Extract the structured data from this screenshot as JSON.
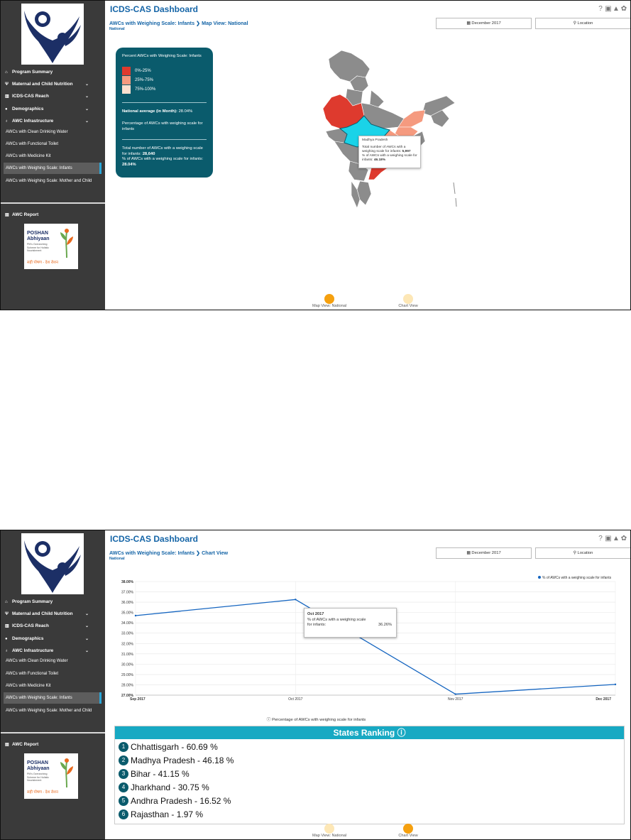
{
  "app": {
    "title": "ICDS-CAS Dashboard",
    "top_icons": [
      "help-icon",
      "print-icon",
      "warning-icon",
      "settings-icon"
    ]
  },
  "sidebar": {
    "items": [
      {
        "label": "Program Summary",
        "icon": "home-icon",
        "has_chevron": false
      },
      {
        "label": "Maternal and Child Nutrition",
        "icon": "fork-icon",
        "has_chevron": true
      },
      {
        "label": "ICDS-CAS Reach",
        "icon": "bar-chart-icon",
        "has_chevron": true
      },
      {
        "label": "Demographics",
        "icon": "users-icon",
        "has_chevron": true
      },
      {
        "label": "AWC Infrastructure",
        "icon": "bulb-icon",
        "has_chevron": true
      }
    ],
    "sub_items": [
      "AWCs with Clean Drinking Water",
      "AWCs with Functional Toilet",
      "AWCs with Medicine Kit",
      "AWCs with Weighing Scale: Infants",
      "AWCs with Weighing Scale: Mother and Child"
    ],
    "report": {
      "label": "AWC Report",
      "icon": "report-icon"
    },
    "poshan": {
      "line1": "POSHAN",
      "line2": "Abhiyaan",
      "tagline": "PM's Overarching Scheme for Holistic Nourishment",
      "hindi": "सही पोषण - देश रोशन"
    }
  },
  "filters": {
    "month": "December 2017",
    "location": "Location"
  },
  "map_view": {
    "breadcrumb_a": "AWCs with Weighing Scale: Infants",
    "breadcrumb_sep": "❯",
    "breadcrumb_b": "Map View: National",
    "subtitle": "National",
    "legend": {
      "title": "Percent AWCs with Weighing Scale: Infants",
      "ranges": [
        {
          "label": "0%-25%",
          "color": "#de3a2e"
        },
        {
          "label": "25%-75%",
          "color": "#f59a7f"
        },
        {
          "label": "75%-100%",
          "color": "#fce0cf"
        }
      ],
      "national_avg_label": "National average (in Month):",
      "national_avg_value": "28.04%",
      "description": "Percentage of AWCs with weighing scale for infants",
      "total_label": "Total number of AWCs with a weighing scale for infants:",
      "total_value": "28,640",
      "pct_label": "% of AWCs with a weighing scale for infants:",
      "pct_value": "28.04%"
    },
    "tooltip": {
      "state": "Madhya Pradesh",
      "total_label": "Total number of AWCs with a weighing scale for infants:",
      "total_value": "5,997",
      "pct_label": "% of AWCs with a weighing scale for infants:",
      "pct_value": "46.18%"
    },
    "map_colors": {
      "default": "#8c8c8c",
      "red": "#de3a2e",
      "salmon": "#f59a7f",
      "highlight": "#1ad3e8"
    }
  },
  "chart_view": {
    "breadcrumb_a": "AWCs with Weighing Scale: Infants",
    "breadcrumb_sep": "❯",
    "breadcrumb_b": "Chart View",
    "subtitle": "National",
    "caption": "Percentage of AWCs with weighing scale for infants",
    "ranking_title": "States Ranking",
    "ranking": [
      {
        "rank": "1",
        "text": "Chhattisgarh - 60.69 %"
      },
      {
        "rank": "2",
        "text": "Madhya Pradesh - 46.18 %"
      },
      {
        "rank": "3",
        "text": "Bihar - 41.15 %"
      },
      {
        "rank": "4",
        "text": "Jharkhand - 30.75 %"
      },
      {
        "rank": "5",
        "text": "Andhra Pradesh - 16.52 %"
      },
      {
        "rank": "6",
        "text": "Rajasthan - 1.97 %"
      }
    ]
  },
  "tabs": {
    "map": "Map View: National",
    "chart": "Chart View",
    "active_color": "#f5a00f",
    "inactive_color": "#fde7b6"
  },
  "chart_data": {
    "type": "line",
    "categories": [
      "Sep 2017",
      "Oct 2017",
      "Nov 2017",
      "Dec 2017"
    ],
    "series": [
      {
        "name": "% of AWCs with a weighing scale for infants",
        "values": [
          34.7,
          36.26,
          27.1,
          28.04
        ],
        "color": "#1565c0"
      }
    ],
    "y_ticks": [
      "27.00%",
      "28.00%",
      "29.00%",
      "30.00%",
      "31.00%",
      "32.00%",
      "33.00%",
      "34.00%",
      "35.00%",
      "36.00%",
      "37.00%",
      "38.00%"
    ],
    "ylim": [
      27,
      38
    ],
    "legend_position": "top-right",
    "tooltip": {
      "title": "Oct 2017",
      "label": "% of AWCs with a weighing scale for infants:",
      "value": "36.26%"
    }
  }
}
